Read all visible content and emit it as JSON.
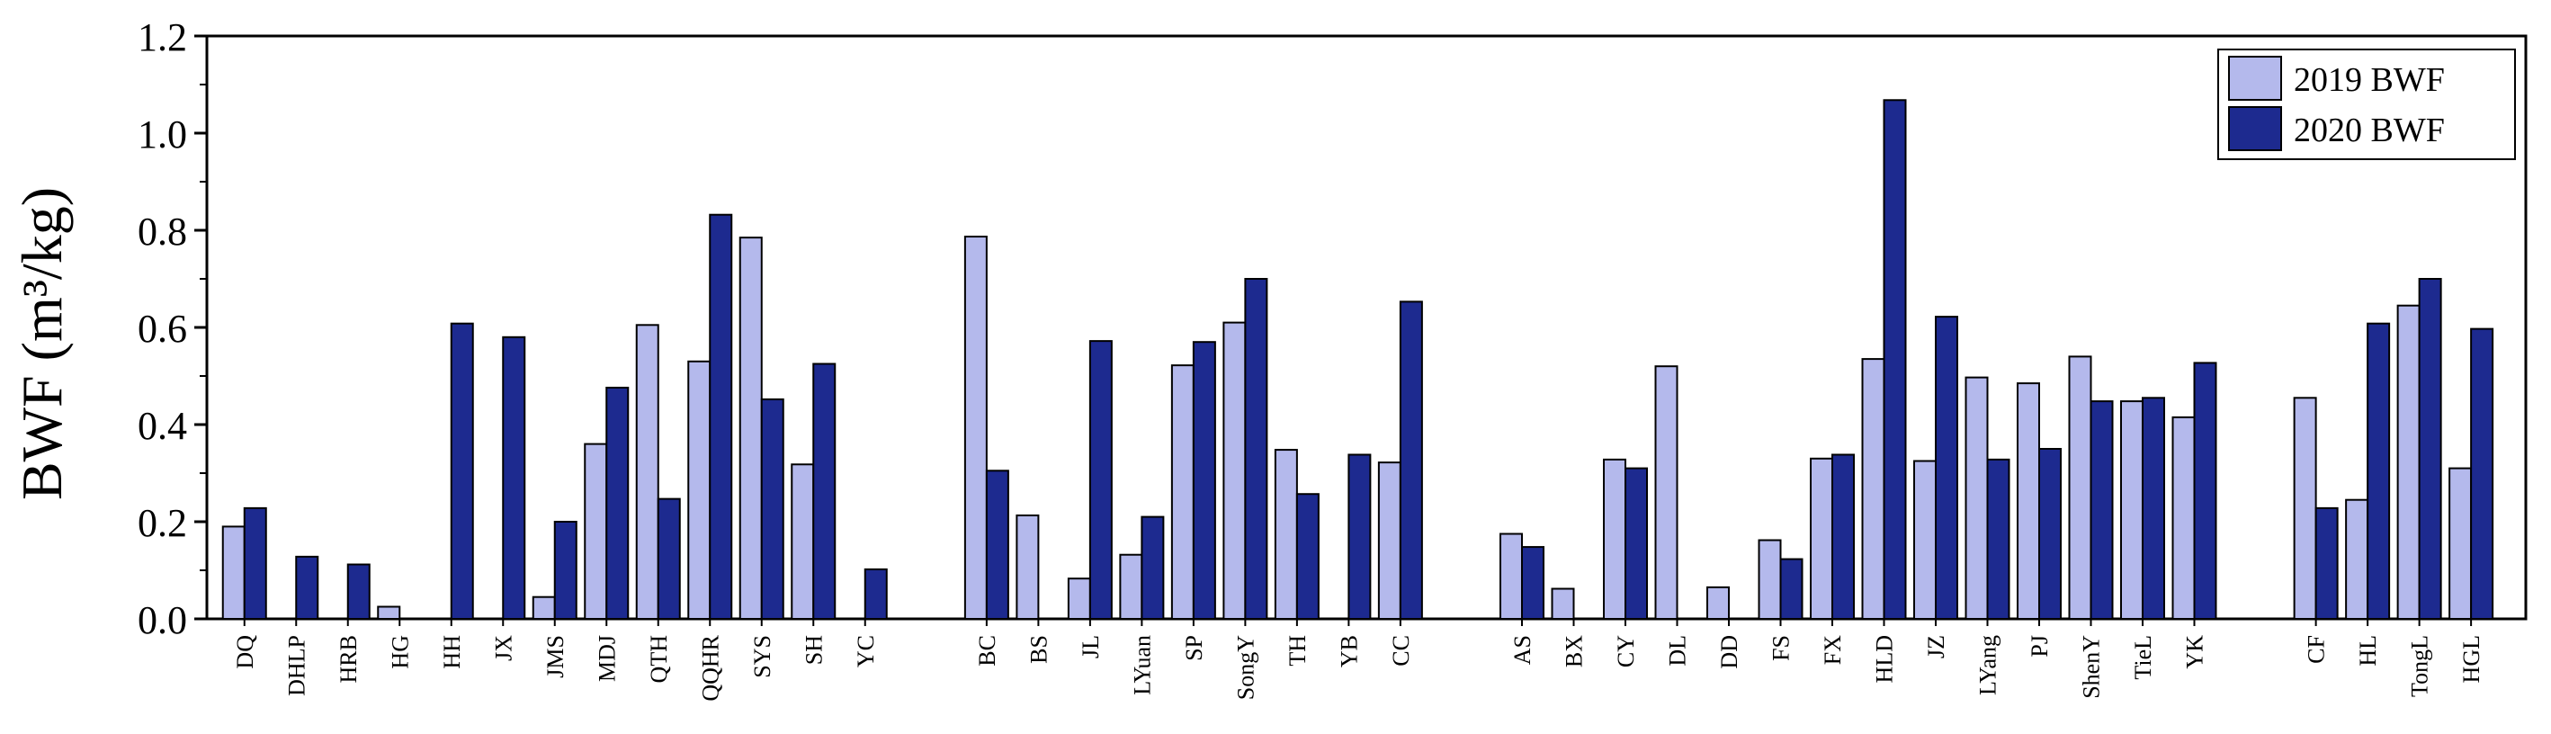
{
  "chart_data": {
    "type": "bar",
    "ylabel": "BWF (m³/kg)",
    "ylim": [
      0,
      1.2
    ],
    "yticks": [
      "0.0",
      "0.2",
      "0.4",
      "0.6",
      "0.8",
      "1.0",
      "1.2"
    ],
    "legend_position": "top-right",
    "colors": {
      "2019 BWF": "#b4b9ec",
      "2020 BWF": "#1d2a8f"
    },
    "groups": [
      {
        "categories": [
          "DQ",
          "DHLP",
          "HRB",
          "HG",
          "HH",
          "JX",
          "JMS",
          "MDJ",
          "QTH",
          "QQHR",
          "SYS",
          "SH",
          "YC"
        ],
        "series": [
          {
            "name": "2019 BWF",
            "values": [
              0.19,
              null,
              null,
              0.025,
              null,
              null,
              0.045,
              0.36,
              0.605,
              0.53,
              0.785,
              0.318,
              null
            ]
          },
          {
            "name": "2020 BWF",
            "values": [
              0.228,
              0.128,
              0.112,
              null,
              0.608,
              0.58,
              0.2,
              0.476,
              0.247,
              0.832,
              0.452,
              0.525,
              0.102
            ]
          }
        ]
      },
      {
        "categories": [
          "BC",
          "BS",
          "JL",
          "LYuan",
          "SP",
          "SongY",
          "TH",
          "YB",
          "CC"
        ],
        "series": [
          {
            "name": "2019 BWF",
            "values": [
              0.787,
              0.213,
              0.083,
              0.132,
              0.522,
              0.61,
              0.348,
              null,
              0.322
            ]
          },
          {
            "name": "2020 BWF",
            "values": [
              0.305,
              null,
              0.572,
              0.21,
              0.57,
              0.7,
              0.257,
              0.338,
              0.653
            ]
          }
        ]
      },
      {
        "categories": [
          "AS",
          "BX",
          "CY",
          "DL",
          "DD",
          "FS",
          "FX",
          "HLD",
          "JZ",
          "LYang",
          "PJ",
          "ShenY",
          "TieL",
          "YK"
        ],
        "series": [
          {
            "name": "2019 BWF",
            "values": [
              0.175,
              0.062,
              0.328,
              0.52,
              0.065,
              0.162,
              0.33,
              0.535,
              0.325,
              0.497,
              0.485,
              0.54,
              0.448,
              0.415
            ]
          },
          {
            "name": "2020 BWF",
            "values": [
              0.148,
              null,
              0.31,
              null,
              null,
              0.123,
              0.338,
              1.068,
              0.622,
              0.328,
              0.35,
              0.448,
              0.455,
              0.527
            ]
          }
        ]
      },
      {
        "categories": [
          "CF",
          "HL",
          "TongL",
          "HGL"
        ],
        "series": [
          {
            "name": "2019 BWF",
            "values": [
              0.455,
              0.245,
              0.645,
              0.31
            ]
          },
          {
            "name": "2020 BWF",
            "values": [
              0.228,
              0.608,
              0.7,
              0.597
            ]
          }
        ]
      }
    ]
  }
}
